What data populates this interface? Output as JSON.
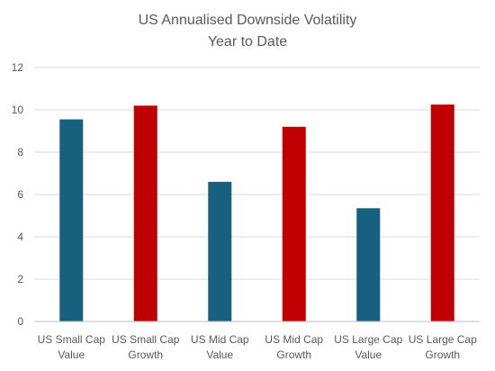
{
  "chart_data": {
    "type": "bar",
    "title_lines": [
      "US Annualised Downside Volatility",
      "Year to Date"
    ],
    "categories": [
      [
        "US Small Cap",
        "Value"
      ],
      [
        "US Small Cap",
        "Growth"
      ],
      [
        "US Mid Cap",
        "Value"
      ],
      [
        "US Mid Cap",
        "Growth"
      ],
      [
        "US Large Cap",
        "Value"
      ],
      [
        "US Large Cap",
        "Growth"
      ]
    ],
    "values": [
      9.55,
      10.2,
      6.6,
      9.2,
      5.35,
      10.25
    ],
    "bar_colors": [
      "#17607f",
      "#c00000",
      "#17607f",
      "#c00000",
      "#17607f",
      "#c00000"
    ],
    "ylim": [
      0,
      12
    ],
    "yticks": [
      0,
      2,
      4,
      6,
      8,
      10,
      12
    ],
    "xlabel": "",
    "ylabel": "",
    "grid": true,
    "legend": "none"
  }
}
